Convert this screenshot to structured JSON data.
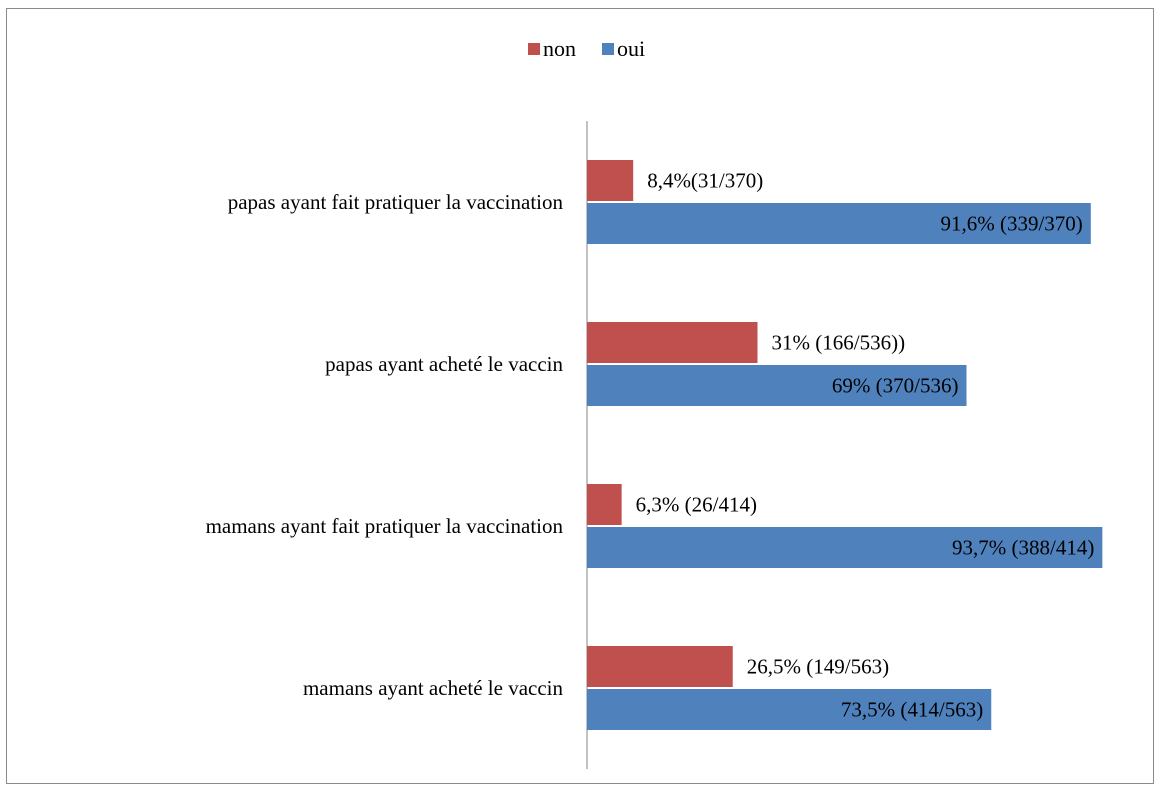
{
  "chart_data": {
    "type": "bar",
    "orientation": "horizontal",
    "title": "",
    "xlabel": "",
    "ylabel": "",
    "xlim": [
      0,
      100
    ],
    "grid": false,
    "legend_position": "top-center",
    "categories": [
      "papas ayant fait pratiquer la vaccination",
      "papas ayant acheté le vaccin",
      "mamans ayant fait pratiquer la vaccination",
      "mamans ayant acheté le vaccin"
    ],
    "series": [
      {
        "name": "non",
        "color": "#c0504d",
        "values": [
          8.4,
          31,
          6.3,
          26.5
        ],
        "labels": [
          "8,4%(31/370)",
          "31% (166/536))",
          "6,3% (26/414)",
          "26,5% (149/563)"
        ]
      },
      {
        "name": "oui",
        "color": "#4f81bd",
        "values": [
          91.6,
          69,
          93.7,
          73.5
        ],
        "labels": [
          "91,6% (339/370)",
          "69% (370/536)",
          "93,7% (388/414)",
          "73,5% (414/563)"
        ]
      }
    ]
  }
}
